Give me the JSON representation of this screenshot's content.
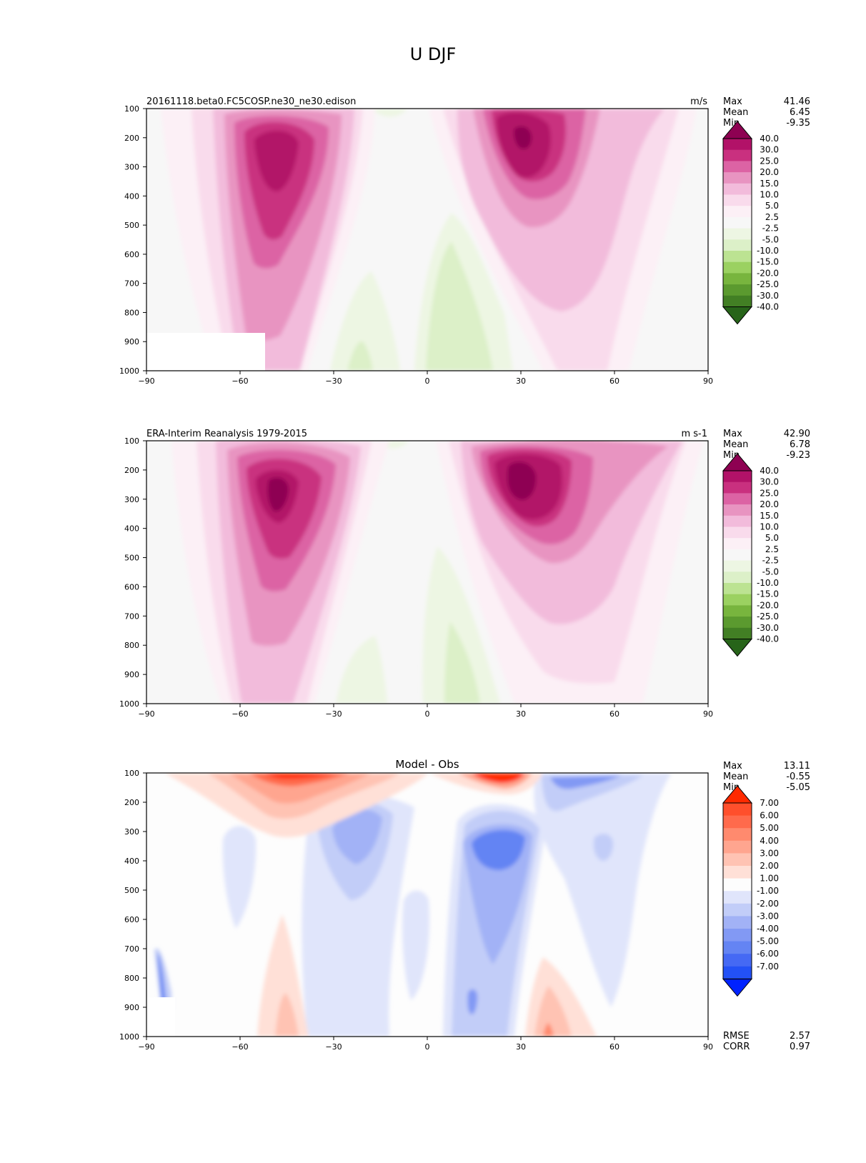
{
  "figure_title": "U DJF",
  "colors": {
    "model_obs": [
      "#8e0152",
      "#b21268",
      "#c9307f",
      "#dc63a4",
      "#e894c1",
      "#f2bbdb",
      "#f9dbec",
      "#fcf0f6",
      "#f7f7f7",
      "#edf6e3",
      "#dcf0c8",
      "#bce392",
      "#9bd161",
      "#78b53e",
      "#5b9a2f",
      "#427f24",
      "#276419"
    ],
    "diff": [
      "#ff2a00",
      "#ff4f2c",
      "#ff6a4c",
      "#ff8a6e",
      "#ffa58f",
      "#ffc3b3",
      "#ffe0d7",
      "#fdfdfd",
      "#e0e5fb",
      "#c2cdf8",
      "#a2b2f6",
      "#8299f4",
      "#6484f3",
      "#4569f4",
      "#2351f6",
      "#0022ff"
    ]
  },
  "chart_data": [
    {
      "type": "contourf",
      "id": "model",
      "title_left": "20161118.beta0.FC5COSP.ne30_ne30.edison",
      "title_right": "m/s",
      "xlim": [
        -90,
        90
      ],
      "ylim": [
        1000,
        100
      ],
      "xticks": [
        "−90",
        "−60",
        "−30",
        "0",
        "30",
        "60",
        "90"
      ],
      "yticks": [
        "100",
        "200",
        "300",
        "400",
        "500",
        "600",
        "700",
        "800",
        "900",
        "1000"
      ],
      "stats": {
        "Max": "41.46",
        "Mean": "6.45",
        "Min": "-9.35"
      },
      "levels": [
        "40.0",
        "30.0",
        "25.0",
        "20.0",
        "15.0",
        "10.0",
        "5.0",
        "2.5",
        "-2.5",
        "-5.0",
        "-10.0",
        "-15.0",
        "-20.0",
        "-25.0",
        "-30.0",
        "-40.0"
      ],
      "jets": [
        {
          "lat": -47,
          "p": 250,
          "max": 34
        },
        {
          "lat": 30,
          "p": 220,
          "max": 41
        }
      ]
    },
    {
      "type": "contourf",
      "id": "obs",
      "title_left": "ERA-Interim Reanalysis 1979-2015",
      "title_right": "m s-1",
      "xlim": [
        -90,
        90
      ],
      "ylim": [
        1000,
        100
      ],
      "xticks": [
        "−90",
        "−60",
        "−30",
        "0",
        "30",
        "60",
        "90"
      ],
      "yticks": [
        "100",
        "200",
        "300",
        "400",
        "500",
        "600",
        "700",
        "800",
        "900",
        "1000"
      ],
      "stats": {
        "Max": "42.90",
        "Mean": "6.78",
        "Min": "-9.23"
      },
      "levels": [
        "40.0",
        "30.0",
        "25.0",
        "20.0",
        "15.0",
        "10.0",
        "5.0",
        "2.5",
        "-2.5",
        "-5.0",
        "-10.0",
        "-15.0",
        "-20.0",
        "-25.0",
        "-30.0",
        "-40.0"
      ],
      "jets": [
        {
          "lat": -48,
          "p": 260,
          "max": 36
        },
        {
          "lat": 30,
          "p": 220,
          "max": 43
        }
      ]
    },
    {
      "type": "contourf",
      "id": "diff",
      "title_center": "Model - Obs",
      "xlim": [
        -90,
        90
      ],
      "ylim": [
        1000,
        100
      ],
      "xticks": [
        "−90",
        "−60",
        "−30",
        "0",
        "30",
        "60",
        "90"
      ],
      "yticks": [
        "100",
        "200",
        "300",
        "400",
        "500",
        "600",
        "700",
        "800",
        "900",
        "1000"
      ],
      "stats": {
        "Max": "13.11",
        "Mean": "-0.55",
        "Min": "-5.05"
      },
      "levels": [
        "7.00",
        "6.00",
        "5.00",
        "4.00",
        "3.00",
        "2.00",
        "1.00",
        "-1.00",
        "-2.00",
        "-3.00",
        "-4.00",
        "-5.00",
        "-6.00",
        "-7.00"
      ],
      "metrics": {
        "RMSE": "2.57",
        "CORR": "0.97"
      }
    }
  ]
}
